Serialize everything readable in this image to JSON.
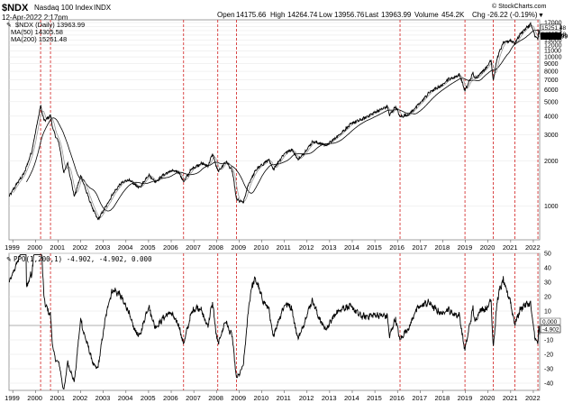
{
  "header": {
    "symbol": "$NDX",
    "name": "Nasdaq 100 Index",
    "exchange": "INDX",
    "date": "12-Apr-2022 2:17pm",
    "open_label": "Open",
    "open": "14175.66",
    "high_label": "High",
    "high": "14264.74",
    "low_label": "Low",
    "low": "13956.76",
    "last_label": "Last",
    "last": "13963.99",
    "volume_label": "Volume",
    "volume": "454.2K",
    "chg_label": "Chg",
    "chg": "-26.22 (-0.19%)",
    "chg_arrow": "▼",
    "credit": "© StockCharts.com"
  },
  "legend_top": [
    {
      "text": "$NDX (Daily) 13963.99",
      "color": "#000000"
    },
    {
      "text": "MA(50) 14305.58",
      "color": "#777777"
    },
    {
      "text": "MA(200) 15251.48",
      "color": "#000000"
    }
  ],
  "legend_bottom": {
    "text": "PPO(1,200,1) -4.902, -4.902, 0.000"
  },
  "price_tags": [
    "15251.48",
    "14305.58",
    "13963.99"
  ],
  "ppo_tags": [
    "0.000",
    "-4.902"
  ],
  "colors": {
    "vline": "#d11c1c",
    "price": "#000000",
    "ma50": "#808080",
    "ma200": "#000000",
    "grid": "#e4e4e4"
  },
  "chart_data": [
    {
      "type": "line",
      "title": "$NDX Nasdaq 100 Index INDX",
      "y_scale": "log",
      "ylim": [
        600,
        17000
      ],
      "y_ticks": [
        1000,
        2000,
        3000,
        4000,
        5000,
        6000,
        7000,
        8000,
        9000,
        10000,
        11000,
        12000,
        13000,
        14000,
        15000,
        16000,
        17000
      ],
      "x_ticks": [
        "1999",
        "2000",
        "2001",
        "2002",
        "2003",
        "2004",
        "2005",
        "2006",
        "2007",
        "2008",
        "2009",
        "2010",
        "2011",
        "2012",
        "2013",
        "2014",
        "2015",
        "2016",
        "2017",
        "2018",
        "2019",
        "2020",
        "2021",
        "2022"
      ],
      "x_range": [
        "1998-11-01",
        "2022-04-12"
      ],
      "series": [
        {
          "name": "$NDX (Daily)",
          "x": [
            "1998-11-01",
            "1999-03-01",
            "1999-07-01",
            "1999-11-01",
            "2000-03-24",
            "2000-05-20",
            "2000-09-01",
            "2000-10-15",
            "2001-01-20",
            "2001-04-04",
            "2001-06-01",
            "2001-09-21",
            "2002-01-04",
            "2002-05-01",
            "2002-07-24",
            "2002-10-08",
            "2003-02-01",
            "2003-06-01",
            "2003-10-01",
            "2004-02-01",
            "2004-08-12",
            "2005-01-01",
            "2005-04-20",
            "2005-09-01",
            "2006-01-01",
            "2006-05-01",
            "2006-07-18",
            "2006-12-01",
            "2007-05-01",
            "2007-08-15",
            "2007-10-31",
            "2008-01-22",
            "2008-03-17",
            "2008-06-01",
            "2008-09-15",
            "2008-11-20",
            "2009-03-09",
            "2009-06-01",
            "2009-10-01",
            "2010-04-23",
            "2010-07-01",
            "2010-12-31",
            "2011-05-01",
            "2011-08-08",
            "2011-10-04",
            "2012-04-01",
            "2012-11-15",
            "2013-06-01",
            "2013-12-31",
            "2014-06-01",
            "2014-12-31",
            "2015-07-20",
            "2015-08-24",
            "2015-12-01",
            "2016-02-11",
            "2016-06-27",
            "2016-12-31",
            "2017-06-01",
            "2017-12-31",
            "2018-03-12",
            "2018-06-01",
            "2018-10-01",
            "2018-12-24",
            "2019-05-01",
            "2019-06-03",
            "2019-12-31",
            "2020-02-19",
            "2020-03-23",
            "2020-06-01",
            "2020-09-02",
            "2020-12-31",
            "2021-03-08",
            "2021-06-01",
            "2021-09-07",
            "2021-11-19",
            "2022-01-27",
            "2022-03-14",
            "2022-03-29",
            "2022-04-12"
          ],
          "values": [
            1150,
            1400,
            1650,
            2300,
            4700,
            3700,
            4050,
            3200,
            2600,
            1650,
            1950,
            1150,
            1600,
            1150,
            930,
            810,
            970,
            1200,
            1400,
            1500,
            1320,
            1620,
            1450,
            1620,
            1720,
            1690,
            1450,
            1780,
            1930,
            1850,
            2240,
            1700,
            1800,
            2000,
            1700,
            1100,
            1050,
            1400,
            1750,
            2050,
            1750,
            2250,
            2400,
            2050,
            2150,
            2700,
            2550,
            3000,
            3600,
            3800,
            4250,
            4650,
            4050,
            4650,
            3950,
            4100,
            4900,
            5800,
            6500,
            7050,
            7200,
            7600,
            5900,
            7800,
            7100,
            8750,
            9700,
            6900,
            10000,
            12400,
            12900,
            12300,
            14200,
            15600,
            16600,
            13900,
            13050,
            15100,
            13964
          ]
        },
        {
          "name": "MA(50)",
          "values": []
        },
        {
          "name": "MA(200)",
          "values": []
        }
      ]
    },
    {
      "type": "line",
      "title": "PPO(1,200,1)",
      "ylim": [
        -45,
        50
      ],
      "y_ticks": [
        -40,
        -30,
        -20,
        -10,
        0,
        10,
        20,
        30,
        40,
        50
      ],
      "series": [
        {
          "name": "PPO(1,200,1)",
          "values": []
        }
      ]
    }
  ],
  "vlines": [
    "2000-03-24",
    "2000-09-01",
    "2006-07-18",
    "2008-01-22",
    "2008-11-20",
    "2016-02-11",
    "2018-12-24",
    "2020-03-23",
    "2021-03-08",
    "2022-03-14"
  ]
}
